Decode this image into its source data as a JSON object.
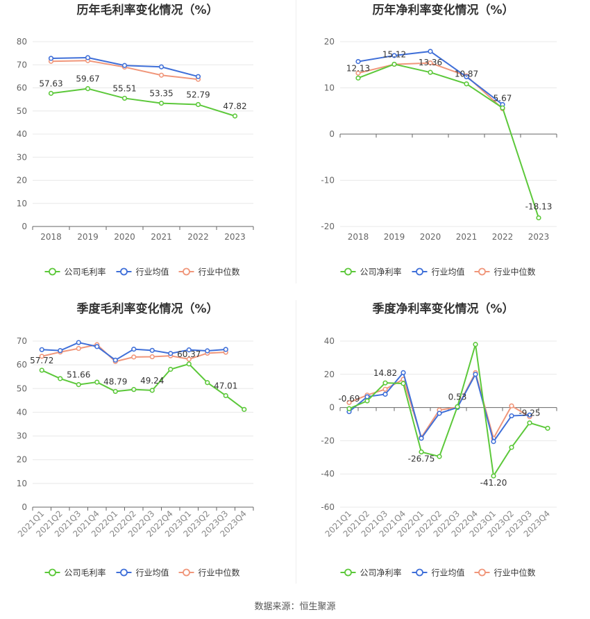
{
  "colors": {
    "company": "#5cc83a",
    "average": "#3f6fd8",
    "median": "#f0967a"
  },
  "legend": {
    "gross": "公司毛利率",
    "net": "公司净利率",
    "avg": "行业均值",
    "median": "行业中位数"
  },
  "footer": "数据来源：恒生聚源",
  "chart_data": [
    {
      "id": "annual-gross",
      "type": "line",
      "title": "历年毛利率变化情况（%）",
      "categories": [
        "2018",
        "2019",
        "2020",
        "2021",
        "2022",
        "2023"
      ],
      "ylim": [
        0,
        80
      ],
      "yticks": [
        0,
        10,
        20,
        30,
        40,
        50,
        60,
        70,
        80
      ],
      "series": [
        {
          "name": "公司毛利率",
          "key": "company",
          "values": [
            57.63,
            59.67,
            55.51,
            53.35,
            52.79,
            47.82
          ]
        },
        {
          "name": "行业均值",
          "key": "average",
          "values": [
            72.8,
            73.1,
            69.7,
            69.1,
            64.9,
            null
          ]
        },
        {
          "name": "行业中位数",
          "key": "median",
          "values": [
            71.5,
            71.8,
            69.0,
            65.5,
            63.7,
            null
          ]
        }
      ],
      "labels": [
        {
          "i": 0,
          "text": "57.63"
        },
        {
          "i": 1,
          "text": "59.67"
        },
        {
          "i": 2,
          "text": "55.51"
        },
        {
          "i": 3,
          "text": "53.35"
        },
        {
          "i": 4,
          "text": "52.79"
        },
        {
          "i": 5,
          "text": "47.82"
        }
      ]
    },
    {
      "id": "annual-net",
      "type": "line",
      "title": "历年净利率变化情况（%）",
      "categories": [
        "2018",
        "2019",
        "2020",
        "2021",
        "2022",
        "2023"
      ],
      "ylim": [
        -20,
        20
      ],
      "yticks": [
        -20,
        -10,
        0,
        10,
        20
      ],
      "series": [
        {
          "name": "公司净利率",
          "key": "company",
          "values": [
            12.13,
            15.12,
            13.36,
            10.87,
            5.67,
            -18.13
          ]
        },
        {
          "name": "行业均值",
          "key": "average",
          "values": [
            15.7,
            17.0,
            17.9,
            12.4,
            6.4,
            null
          ]
        },
        {
          "name": "行业中位数",
          "key": "median",
          "values": [
            13.2,
            15.1,
            15.4,
            12.6,
            5.5,
            null
          ]
        }
      ],
      "labels": [
        {
          "i": 0,
          "text": "12.13"
        },
        {
          "i": 1,
          "text": "15.12"
        },
        {
          "i": 2,
          "text": "13.36"
        },
        {
          "i": 3,
          "text": "10.87"
        },
        {
          "i": 4,
          "text": "5.67"
        },
        {
          "i": 5,
          "text": "-18.13"
        }
      ]
    },
    {
      "id": "quarterly-gross",
      "type": "line",
      "title": "季度毛利率变化情况（%）",
      "categories": [
        "2021Q1",
        "2021Q2",
        "2021Q3",
        "2021Q4",
        "2022Q1",
        "2022Q2",
        "2022Q3",
        "2022Q4",
        "2023Q1",
        "2023Q2",
        "2023Q3",
        "2023Q4"
      ],
      "ylim": [
        0,
        70
      ],
      "yticks": [
        0,
        10,
        20,
        30,
        40,
        50,
        60,
        70
      ],
      "series": [
        {
          "name": "公司毛利率",
          "key": "company",
          "values": [
            57.72,
            54.2,
            51.66,
            52.7,
            48.79,
            49.6,
            49.24,
            58.1,
            60.37,
            52.5,
            47.01,
            41.2
          ]
        },
        {
          "name": "行业均值",
          "key": "average",
          "values": [
            66.4,
            66.0,
            69.4,
            67.7,
            62.0,
            66.6,
            66.1,
            64.8,
            66.3,
            65.9,
            66.5,
            null
          ]
        },
        {
          "name": "行业中位数",
          "key": "median",
          "values": [
            63.6,
            65.4,
            66.9,
            68.5,
            61.4,
            63.3,
            63.4,
            63.8,
            62.4,
            64.9,
            65.3,
            null
          ]
        }
      ],
      "labels": [
        {
          "i": 0,
          "text": "57.72"
        },
        {
          "i": 2,
          "text": "51.66"
        },
        {
          "i": 4,
          "text": "48.79"
        },
        {
          "i": 6,
          "text": "49.24"
        },
        {
          "i": 8,
          "text": "60.37"
        },
        {
          "i": 10,
          "text": "47.01"
        }
      ]
    },
    {
      "id": "quarterly-net",
      "type": "line",
      "title": "季度净利率变化情况（%）",
      "categories": [
        "2021Q1",
        "2021Q2",
        "2021Q3",
        "2021Q4",
        "2022Q1",
        "2022Q2",
        "2022Q3",
        "2022Q4",
        "2023Q1",
        "2023Q2",
        "2023Q3",
        "2023Q4"
      ],
      "ylim": [
        -60,
        40
      ],
      "yticks": [
        -60,
        -40,
        -20,
        0,
        20,
        40
      ],
      "series": [
        {
          "name": "公司净利率",
          "key": "company",
          "values": [
            -0.69,
            4.0,
            14.82,
            14.5,
            -26.75,
            -29.5,
            0.53,
            38.0,
            -41.2,
            -24.0,
            -9.25,
            -12.5
          ]
        },
        {
          "name": "行业均值",
          "key": "average",
          "values": [
            -2.5,
            6.5,
            8.0,
            21.0,
            -18.5,
            -3.5,
            0.0,
            20.0,
            -20.5,
            -5.0,
            -4.5,
            null
          ]
        },
        {
          "name": "行业中位数",
          "key": "median",
          "values": [
            3.0,
            7.5,
            11.0,
            17.0,
            -18.0,
            -1.5,
            0.2,
            21.0,
            -18.5,
            1.0,
            -5.5,
            null
          ]
        }
      ],
      "labels": [
        {
          "i": 0,
          "text": "-0.69"
        },
        {
          "i": 2,
          "text": "14.82"
        },
        {
          "i": 4,
          "text": "-26.75"
        },
        {
          "i": 6,
          "text": "0.53"
        },
        {
          "i": 8,
          "text": "-41.20"
        },
        {
          "i": 10,
          "text": "-9.25"
        }
      ]
    }
  ]
}
